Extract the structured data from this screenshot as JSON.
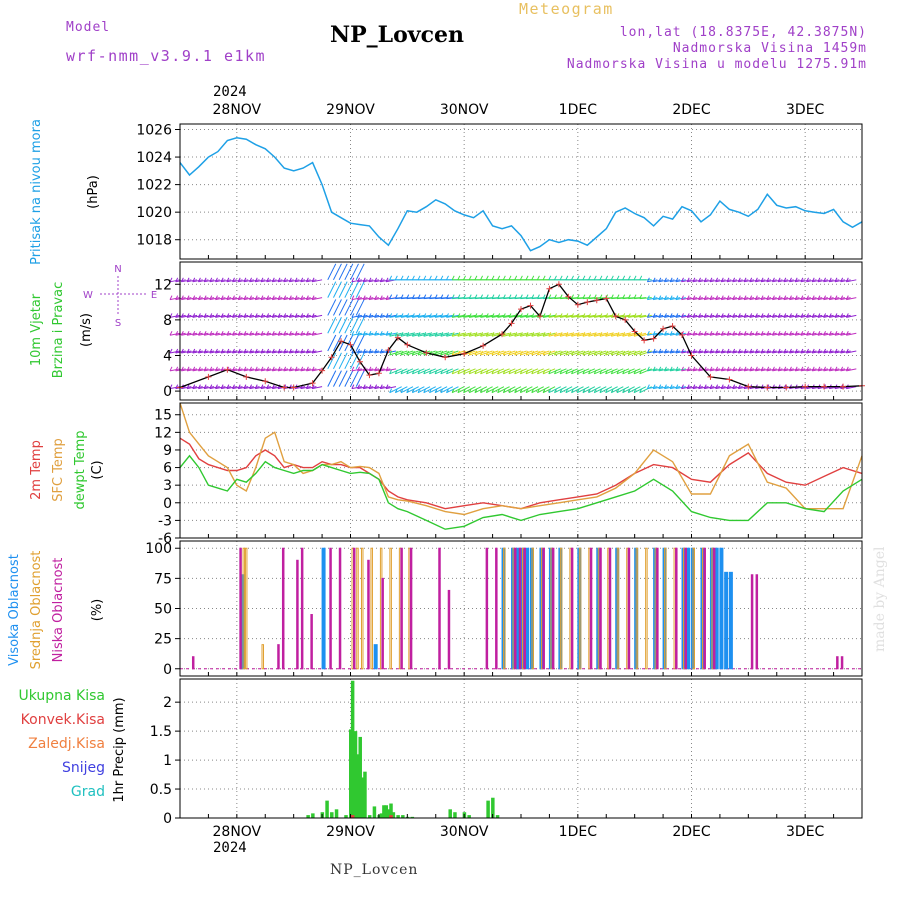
{
  "header": {
    "model_label": "Model",
    "model_name": "wrf-nmm_v3.9.1 e1km",
    "title": "NP_Lovcen",
    "meteogram": "Meteogram",
    "lonlat": "lon,lat (18.8375E, 42.3875N)",
    "elevation": "Nadmorska Visina 1459m",
    "model_elevation": "Nadmorska Visina u modelu 1275.91m",
    "footer": "NP_Lovcen",
    "watermark": "made by Angel"
  },
  "colors": {
    "pressure": "#1ea0e6",
    "t2m": "#e04040",
    "tsfc": "#e0a040",
    "dewpt": "#30c830",
    "high_cloud": "#1e90f0",
    "mid_cloud": "#e0a030",
    "low_cloud": "#c020a0",
    "precip_total": "#30c830",
    "precip_conv": "#e04040",
    "precip_frz": "#f08040",
    "precip_snow": "#4040e0",
    "precip_grad": "#20c0c0",
    "model_text": "#a040c8"
  },
  "x_axis": {
    "year": "2024",
    "labels": [
      "28NOV",
      "29NOV",
      "30NOV",
      "1DEC",
      "2DEC",
      "3DEC"
    ],
    "positions_hours": [
      12,
      36,
      60,
      84,
      108,
      132
    ],
    "hours_range": [
      0,
      144
    ]
  },
  "panels": {
    "pressure": {
      "ylabel1": "Pritisak na nivou mora",
      "ylabel2": "(hPa)",
      "ticks": [
        "1018",
        "1020",
        "1022",
        "1024",
        "1026"
      ]
    },
    "wind": {
      "ylabel1": "10m Vjetar",
      "ylabel2": "Brzina i Pravac",
      "ylabel3": "(m/s)",
      "ticks": [
        "0",
        "4",
        "8",
        "12"
      ],
      "compass": {
        "n": "N",
        "s": "S",
        "w": "W",
        "e": "E"
      }
    },
    "temp": {
      "ylabel1": "2m Temp",
      "ylabel2": "SFC Temp",
      "ylabel3": "dewpt Temp",
      "ylabel4": "(C)",
      "ticks": [
        "-6",
        "-3",
        "0",
        "3",
        "6",
        "9",
        "12",
        "15"
      ]
    },
    "cloud": {
      "ylabel1": "Visoka Oblacnost",
      "ylabel2": "Srednja Oblacnost",
      "ylabel3": "Niska Oblacnost",
      "ylabel4": "(%)",
      "ticks": [
        "0",
        "25",
        "50",
        "75",
        "100"
      ]
    },
    "precip": {
      "ylabel": "1hr Precip (mm)",
      "ticks": [
        "0",
        "0.5",
        "1",
        "1.5",
        "2"
      ],
      "legend": [
        "Ukupna Kisa",
        "Konvek.Kisa",
        "Zaledj.Kisa",
        "Snijeg",
        "Grad"
      ]
    }
  },
  "chart_data": [
    {
      "type": "line",
      "title": "NP_Lovcen",
      "ylabel": "Pritisak na nivou mora (hPa)",
      "ylim": [
        1016.6,
        1026.4
      ],
      "series": [
        {
          "name": "Pritisak na nivou mora",
          "x": [
            0,
            2,
            4,
            6,
            8,
            10,
            12,
            14,
            16,
            18,
            20,
            22,
            24,
            26,
            28,
            30,
            32,
            34,
            36,
            38,
            40,
            42,
            44,
            46,
            48,
            50,
            52,
            54,
            56,
            58,
            60,
            62,
            64,
            66,
            68,
            70,
            72,
            74,
            76,
            78,
            80,
            82,
            84,
            86,
            88,
            90,
            92,
            94,
            96,
            98,
            100,
            102,
            104,
            106,
            108,
            110,
            112,
            114,
            116,
            118,
            120,
            122,
            124,
            126,
            128,
            130,
            132,
            134,
            136,
            138,
            140,
            142,
            144
          ],
          "y": [
            1023.6,
            1022.7,
            1023.3,
            1024.0,
            1024.4,
            1025.2,
            1025.4,
            1025.3,
            1024.9,
            1024.6,
            1024.0,
            1023.2,
            1023.0,
            1023.2,
            1023.6,
            1022.0,
            1020.0,
            1019.6,
            1019.2,
            1019.1,
            1019.0,
            1018.2,
            1017.6,
            1018.8,
            1020.1,
            1020.0,
            1020.4,
            1020.9,
            1020.6,
            1020.1,
            1019.8,
            1019.6,
            1020.1,
            1019.0,
            1018.8,
            1019.0,
            1018.3,
            1017.2,
            1017.5,
            1018.0,
            1017.8,
            1018.0,
            1017.9,
            1017.6,
            1018.2,
            1018.8,
            1020.0,
            1020.3,
            1019.9,
            1019.6,
            1019.0,
            1019.7,
            1019.5,
            1020.4,
            1020.1,
            1019.3,
            1019.8,
            1020.8,
            1020.2,
            1020.0,
            1019.7,
            1020.2,
            1021.3,
            1020.5,
            1020.3,
            1020.4,
            1020.1,
            1020.0,
            1019.9,
            1020.2,
            1019.3,
            1018.9,
            1019.3
          ]
        }
      ]
    },
    {
      "type": "line",
      "ylabel": "10m Vjetar Brzina i Pravac (m/s)",
      "ylim": [
        -1,
        14.5
      ],
      "series": [
        {
          "name": "speed",
          "x": [
            0,
            6,
            10,
            14,
            18,
            22,
            24,
            28,
            30,
            32,
            34,
            36,
            38,
            40,
            42,
            44,
            46,
            48,
            52,
            56,
            60,
            64,
            68,
            70,
            72,
            74,
            76,
            78,
            80,
            82,
            84,
            86,
            88,
            90,
            92,
            94,
            96,
            98,
            100,
            102,
            104,
            106,
            108,
            112,
            116,
            120,
            124,
            128,
            132,
            136,
            140,
            144
          ],
          "y": [
            0.4,
            1.6,
            2.4,
            1.6,
            1.1,
            0.4,
            0.4,
            0.9,
            2.3,
            3.8,
            5.6,
            5.2,
            3.3,
            1.8,
            2.0,
            4.6,
            6.0,
            5.2,
            4.3,
            3.8,
            4.2,
            5.1,
            6.4,
            7.6,
            9.2,
            9.6,
            8.4,
            11.5,
            12.0,
            10.6,
            9.7,
            10.0,
            10.2,
            10.4,
            8.4,
            8.0,
            6.7,
            5.7,
            5.9,
            7.0,
            7.3,
            6.3,
            4.0,
            1.6,
            1.3,
            0.5,
            0.4,
            0.4,
            0.5,
            0.5,
            0.5,
            0.6
          ]
        }
      ]
    },
    {
      "type": "line",
      "ylabel": "(C)",
      "ylim": [
        -6,
        17
      ],
      "series": [
        {
          "name": "2m Temp",
          "x": [
            0,
            2,
            4,
            6,
            8,
            10,
            12,
            14,
            16,
            18,
            20,
            22,
            24,
            26,
            28,
            30,
            32,
            34,
            36,
            38,
            40,
            42,
            44,
            46,
            48,
            52,
            56,
            60,
            64,
            68,
            72,
            76,
            80,
            84,
            88,
            92,
            96,
            100,
            104,
            108,
            112,
            116,
            120,
            124,
            128,
            132,
            136,
            140,
            144
          ],
          "y": [
            11,
            10,
            7.5,
            6.5,
            6,
            5.5,
            5.5,
            6,
            8,
            9,
            8,
            6,
            6.5,
            6,
            6,
            7,
            6.5,
            6.5,
            6,
            6,
            5,
            4,
            2,
            1,
            0.5,
            0,
            -1,
            -0.5,
            0,
            -0.5,
            -1,
            0,
            0.5,
            1,
            1.5,
            3,
            5,
            6.5,
            6,
            4,
            3.5,
            6.5,
            8.5,
            5,
            3.5,
            3,
            4.5,
            6,
            5
          ]
        },
        {
          "name": "SFC Temp",
          "x": [
            0,
            2,
            4,
            6,
            8,
            10,
            12,
            14,
            16,
            18,
            20,
            22,
            24,
            26,
            28,
            30,
            32,
            34,
            36,
            38,
            40,
            42,
            44,
            46,
            48,
            52,
            56,
            60,
            64,
            68,
            72,
            76,
            80,
            84,
            88,
            92,
            96,
            100,
            104,
            108,
            112,
            116,
            120,
            124,
            128,
            132,
            136,
            140,
            144
          ],
          "y": [
            17,
            12,
            10,
            8,
            7,
            6,
            3,
            2,
            6,
            11,
            12,
            7,
            6.5,
            5,
            5.5,
            6.5,
            6.5,
            7,
            6,
            6.2,
            6,
            5,
            1,
            0.5,
            0.3,
            -0.5,
            -1.5,
            -2,
            -1,
            -0.5,
            -1,
            -0.5,
            0,
            0.5,
            1,
            2.5,
            5,
            9,
            7,
            1.5,
            1.5,
            8,
            10,
            3.5,
            2.5,
            -1,
            -1,
            -1,
            8
          ]
        },
        {
          "name": "dewpt Temp",
          "x": [
            0,
            2,
            4,
            6,
            8,
            10,
            12,
            14,
            16,
            18,
            20,
            22,
            24,
            26,
            28,
            30,
            32,
            34,
            36,
            38,
            40,
            42,
            44,
            46,
            48,
            52,
            56,
            60,
            64,
            68,
            72,
            76,
            80,
            84,
            88,
            92,
            96,
            100,
            104,
            108,
            112,
            116,
            120,
            124,
            128,
            132,
            136,
            140,
            144
          ],
          "y": [
            6,
            8,
            6,
            3,
            2.5,
            2,
            4,
            3.5,
            5,
            7,
            6,
            5.5,
            5,
            5.5,
            5.5,
            6.5,
            6,
            5.5,
            5,
            5.2,
            5,
            4,
            0,
            -1,
            -1.5,
            -3,
            -4.5,
            -4,
            -2.5,
            -2,
            -3,
            -2,
            -1.5,
            -1,
            0,
            1,
            2,
            4,
            2,
            -1.5,
            -2.5,
            -3,
            -3,
            0,
            0,
            -1,
            -1.5,
            2,
            4
          ]
        }
      ]
    },
    {
      "type": "bar",
      "ylabel": "Oblacnost (%)",
      "ylim": [
        0,
        100
      ],
      "series": [
        {
          "name": "Visoka Oblacnost",
          "x": [
            13,
            30,
            41,
            68,
            70,
            71,
            72,
            73,
            74,
            76,
            78,
            80,
            84,
            88,
            92,
            96,
            100,
            102,
            106,
            107,
            108,
            110,
            112,
            113,
            114,
            115,
            116
          ],
          "y": [
            78,
            100,
            20,
            100,
            100,
            100,
            100,
            100,
            100,
            100,
            100,
            100,
            100,
            100,
            100,
            100,
            100,
            100,
            100,
            100,
            100,
            100,
            100,
            100,
            100,
            80,
            80
          ]
        },
        {
          "name": "Srednja Oblacnost",
          "x": [
            13,
            13.5,
            17,
            36,
            37,
            38,
            40,
            42,
            44,
            46,
            48,
            68,
            70,
            72,
            74,
            76,
            78,
            80,
            82,
            84,
            86,
            88,
            90,
            92,
            94,
            96,
            98,
            100,
            102,
            104,
            106,
            108,
            110,
            112
          ],
          "y": [
            100,
            100,
            20,
            100,
            100,
            100,
            100,
            100,
            100,
            100,
            100,
            100,
            100,
            100,
            100,
            100,
            100,
            100,
            100,
            100,
            100,
            100,
            100,
            100,
            100,
            100,
            100,
            100,
            100,
            100,
            100,
            100,
            100,
            100
          ]
        },
        {
          "name": "Niska Oblacnost",
          "x": [
            2,
            12,
            20,
            21,
            24,
            25,
            27,
            31,
            33,
            36,
            39,
            42,
            46,
            48,
            54,
            56,
            64,
            66,
            70,
            71,
            72,
            76,
            78,
            82,
            86,
            88,
            90,
            94,
            100,
            104,
            106,
            110,
            112,
            120,
            121,
            138,
            139
          ],
          "y": [
            10,
            100,
            20,
            100,
            90,
            100,
            45,
            100,
            100,
            100,
            90,
            75,
            100,
            100,
            100,
            65,
            100,
            100,
            100,
            100,
            100,
            100,
            100,
            100,
            100,
            100,
            100,
            100,
            100,
            100,
            100,
            100,
            100,
            78,
            78,
            10,
            10
          ]
        }
      ]
    },
    {
      "type": "bar",
      "ylabel": "1hr Precip (mm)",
      "ylim": [
        0,
        2.4
      ],
      "series": [
        {
          "name": "Ukupna Kisa",
          "x": [
            27,
            28,
            30,
            31,
            32,
            33,
            35,
            36,
            36.4,
            37,
            37.5,
            38,
            38.5,
            39,
            40,
            41,
            42,
            42.5,
            43,
            43.5,
            44,
            44.5,
            45,
            46,
            47,
            48,
            49,
            57,
            58,
            60,
            61,
            65,
            66,
            67
          ],
          "y": [
            0.05,
            0.08,
            0.1,
            0.3,
            0.1,
            0.15,
            0.05,
            1.53,
            2.37,
            1.5,
            1.1,
            1.4,
            0.7,
            0.8,
            0.05,
            0.2,
            0.05,
            0.08,
            0.22,
            0.22,
            0.15,
            0.25,
            0.1,
            0.05,
            0.05,
            0.02,
            0.02,
            0.15,
            0.1,
            0.1,
            0.05,
            0.3,
            0.35,
            0.05
          ]
        },
        {
          "name": "Konvek.Kisa",
          "x": [
            36.4,
            44.5
          ],
          "y": [
            0.05,
            0.05
          ]
        }
      ]
    }
  ]
}
